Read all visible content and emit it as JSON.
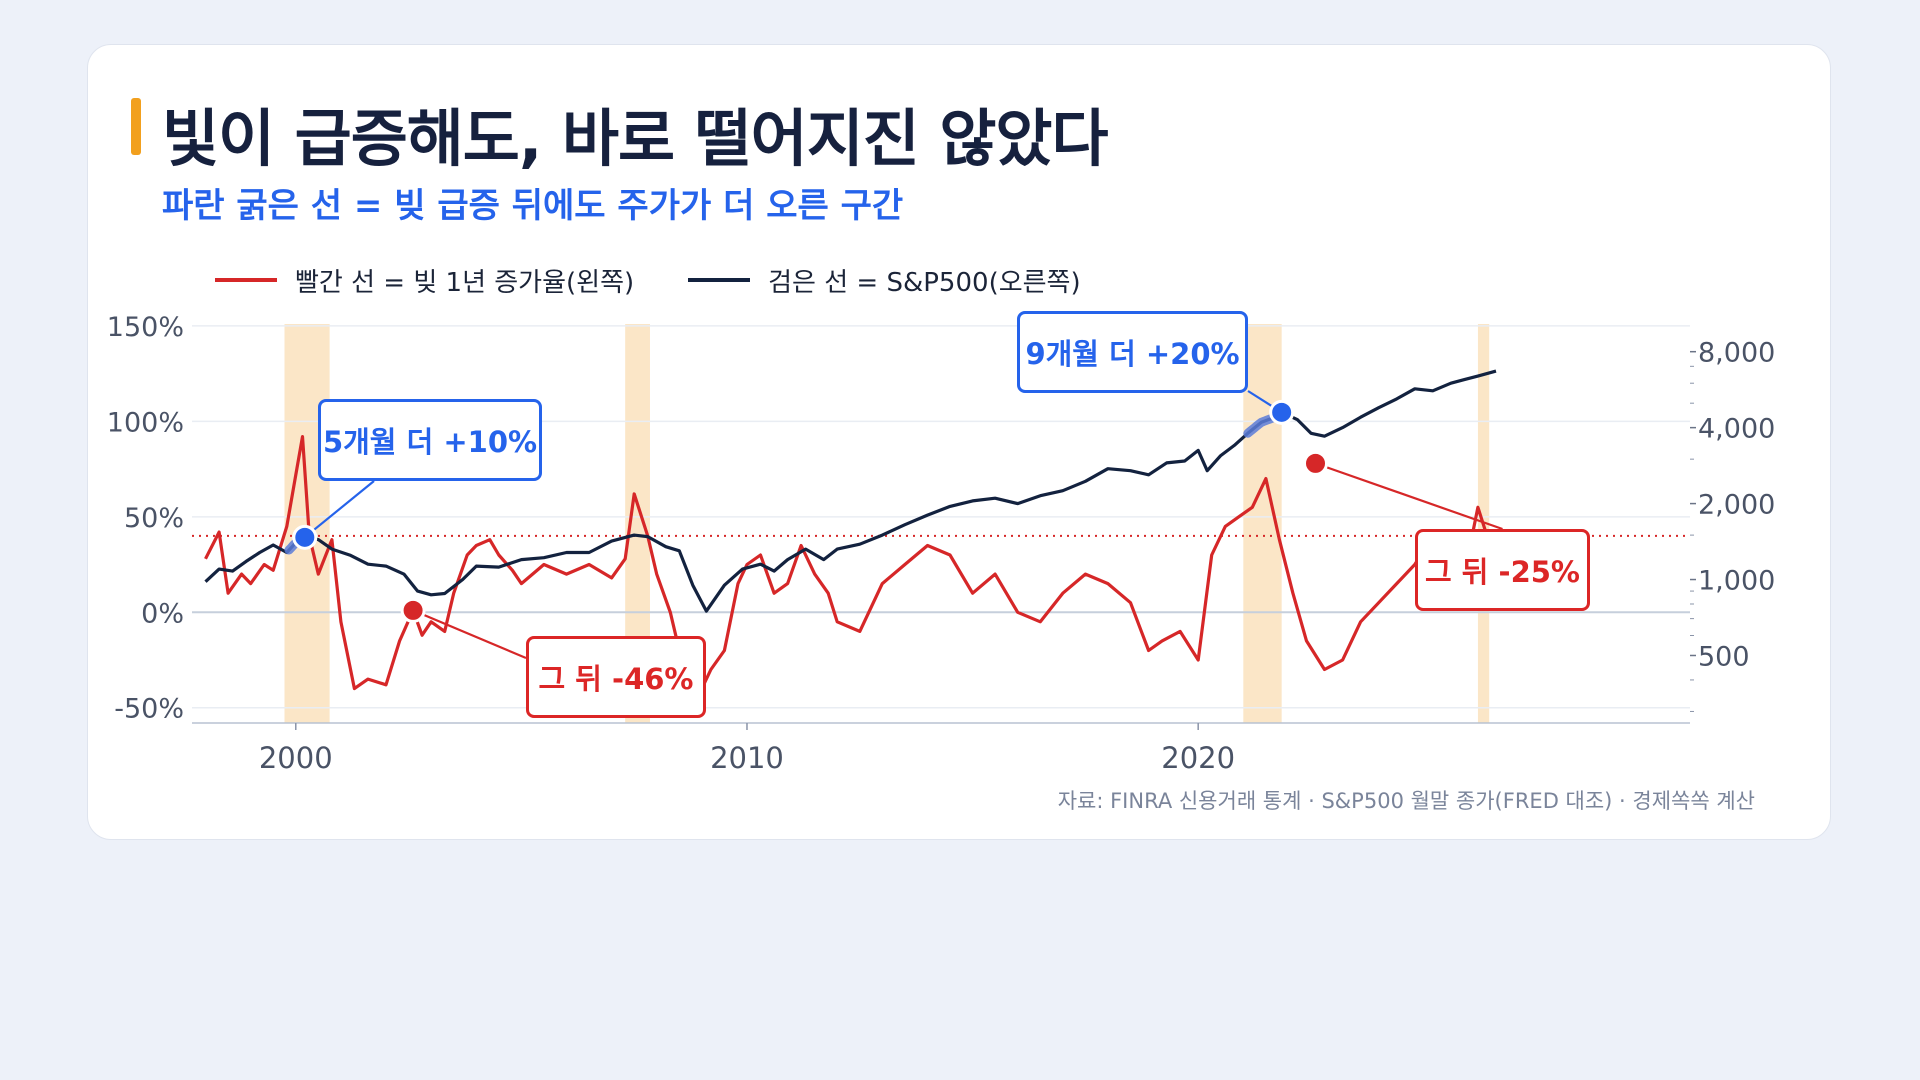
{
  "title": "빛이 급증해도, 바로 떨어지진 않았다",
  "subtitle": "파란 굵은 선 = 빚 급증 뒤에도 주가가 더 오른 구간",
  "legend": {
    "red": "빨간 선 = 빚 1년 증가율(왼쪽)",
    "black": "검은 선 = S&P500(오른쪽)"
  },
  "source": "자료: FINRA 신용거래 통계 · S&P500 월말 종가(FRED 대조) · 경제쏙쏙 계산",
  "colors": {
    "red": "#d62728",
    "black": "#13223f",
    "blue": "#2563eb",
    "band": "#fbe6c7",
    "accent": "#f2a01e"
  },
  "annotations": [
    {
      "id": "a1",
      "text": "5개월 더 +10%",
      "color": "blue"
    },
    {
      "id": "a2",
      "text": "그 뒤 -46%",
      "color": "red"
    },
    {
      "id": "a3",
      "text": "9개월 더 +20%",
      "color": "blue"
    },
    {
      "id": "a4",
      "text": "그 뒤 -25%",
      "color": "red"
    }
  ],
  "chart_data": {
    "type": "line",
    "x_ticks": [
      "2000",
      "2010",
      "2020"
    ],
    "xlim": [
      1997.7,
      2030.9
    ],
    "y_left": {
      "ticks": [
        "150%",
        "100%",
        "50%",
        "0%",
        "-50%"
      ],
      "tick_values": [
        150,
        100,
        50,
        0,
        -50
      ],
      "lim": [
        -58,
        151
      ]
    },
    "y_right": {
      "scale": "log",
      "ticks": [
        "8,000",
        "4,000",
        "2,000",
        "1,000",
        "500"
      ],
      "tick_values": [
        8000,
        4000,
        2000,
        1000,
        500
      ],
      "lim": [
        270,
        10300
      ]
    },
    "reference_line_left": 40,
    "shaded_periods": [
      [
        1999.75,
        2000.75
      ],
      [
        2007.3,
        2007.85
      ],
      [
        2021.0,
        2021.85
      ],
      [
        2026.2,
        2026.45
      ]
    ],
    "highlight_segments": [
      {
        "series": "S&P500",
        "x": [
          1999.85,
          2000.2
        ]
      },
      {
        "series": "S&P500",
        "x": [
          2021.1,
          2021.85
        ]
      }
    ],
    "markers": [
      {
        "series": "S&P500",
        "x": 2000.2,
        "y": 1470,
        "color": "blue",
        "label": "5개월 더 +10%"
      },
      {
        "series": "빚 1년 증가율",
        "x": 2002.6,
        "y": 1,
        "color": "red",
        "label": "그 뒤 -46%"
      },
      {
        "series": "S&P500",
        "x": 2021.85,
        "y": 4600,
        "color": "blue",
        "label": "9개월 더 +20%"
      },
      {
        "series": "빚 1년 증가율",
        "x": 2022.6,
        "y": 78,
        "color": "red",
        "label": "그 뒤 -25%"
      }
    ],
    "series": [
      {
        "name": "빚 1년 증가율",
        "axis": "left",
        "color": "#d62728",
        "x": [
          1998.0,
          1998.3,
          1998.5,
          1998.8,
          1999.0,
          1999.3,
          1999.5,
          1999.8,
          2000.0,
          2000.15,
          2000.3,
          2000.5,
          2000.8,
          2001.0,
          2001.3,
          2001.6,
          2002.0,
          2002.3,
          2002.6,
          2002.8,
          2003.0,
          2003.3,
          2003.5,
          2003.8,
          2004.0,
          2004.3,
          2004.5,
          2004.8,
          2005.0,
          2005.5,
          2006.0,
          2006.5,
          2007.0,
          2007.3,
          2007.5,
          2007.8,
          2008.0,
          2008.3,
          2008.6,
          2008.9,
          2009.2,
          2009.5,
          2009.8,
          2010.0,
          2010.3,
          2010.6,
          2010.9,
          2011.2,
          2011.5,
          2011.8,
          2012.0,
          2012.5,
          2013.0,
          2013.5,
          2014.0,
          2014.5,
          2015.0,
          2015.5,
          2016.0,
          2016.5,
          2017.0,
          2017.5,
          2018.0,
          2018.5,
          2018.9,
          2019.2,
          2019.6,
          2020.0,
          2020.3,
          2020.6,
          2020.9,
          2021.2,
          2021.5,
          2021.8,
          2022.1,
          2022.4,
          2022.8,
          2023.2,
          2023.6,
          2024.0,
          2024.4,
          2024.8,
          2025.2,
          2025.6,
          2025.9,
          2026.2,
          2026.4,
          2026.6
        ],
        "values": [
          28,
          42,
          10,
          20,
          15,
          25,
          22,
          45,
          72,
          92,
          40,
          20,
          38,
          -5,
          -40,
          -35,
          -38,
          -15,
          1,
          -12,
          -5,
          -10,
          10,
          30,
          35,
          38,
          30,
          22,
          15,
          25,
          20,
          25,
          18,
          28,
          62,
          40,
          20,
          0,
          -30,
          -45,
          -30,
          -20,
          15,
          25,
          30,
          10,
          15,
          35,
          20,
          10,
          -5,
          -10,
          15,
          25,
          35,
          30,
          10,
          20,
          0,
          -5,
          10,
          20,
          15,
          5,
          -20,
          -15,
          -10,
          -25,
          30,
          45,
          50,
          55,
          70,
          38,
          10,
          -15,
          -30,
          -25,
          -5,
          5,
          15,
          25,
          40,
          35,
          20,
          55,
          40,
          38
        ]
      },
      {
        "name": "S&P500",
        "axis": "right",
        "color": "#13223f",
        "x": [
          1998.0,
          1998.3,
          1998.6,
          1998.9,
          1999.2,
          1999.5,
          1999.8,
          2000.0,
          2000.2,
          2000.5,
          2000.8,
          2001.2,
          2001.6,
          2002.0,
          2002.4,
          2002.7,
          2003.0,
          2003.3,
          2003.7,
          2004.0,
          2004.5,
          2005.0,
          2005.5,
          2006.0,
          2006.5,
          2007.0,
          2007.5,
          2007.8,
          2008.2,
          2008.5,
          2008.8,
          2009.1,
          2009.5,
          2009.9,
          2010.3,
          2010.6,
          2010.9,
          2011.3,
          2011.7,
          2012.0,
          2012.5,
          2013.0,
          2013.5,
          2014.0,
          2014.5,
          2015.0,
          2015.5,
          2016.0,
          2016.5,
          2017.0,
          2017.5,
          2018.0,
          2018.5,
          2018.9,
          2019.3,
          2019.7,
          2020.0,
          2020.2,
          2020.5,
          2020.8,
          2021.1,
          2021.4,
          2021.7,
          2021.85,
          2022.2,
          2022.5,
          2022.8,
          2023.2,
          2023.6,
          2024.0,
          2024.4,
          2024.8,
          2025.2,
          2025.6,
          2025.9,
          2026.2,
          2026.6
        ],
        "values": [
          980,
          1100,
          1080,
          1180,
          1280,
          1370,
          1280,
          1400,
          1470,
          1440,
          1320,
          1250,
          1150,
          1130,
          1050,
          900,
          870,
          880,
          1000,
          1130,
          1120,
          1200,
          1220,
          1280,
          1280,
          1420,
          1500,
          1480,
          1350,
          1300,
          950,
          750,
          950,
          1100,
          1150,
          1080,
          1200,
          1320,
          1200,
          1320,
          1380,
          1500,
          1650,
          1800,
          1950,
          2050,
          2100,
          2000,
          2150,
          2250,
          2450,
          2750,
          2700,
          2600,
          2900,
          2950,
          3250,
          2700,
          3100,
          3400,
          3800,
          4200,
          4400,
          4600,
          4300,
          3800,
          3700,
          4000,
          4400,
          4800,
          5200,
          5700,
          5600,
          6000,
          6200,
          6400,
          6700
        ]
      }
    ]
  }
}
